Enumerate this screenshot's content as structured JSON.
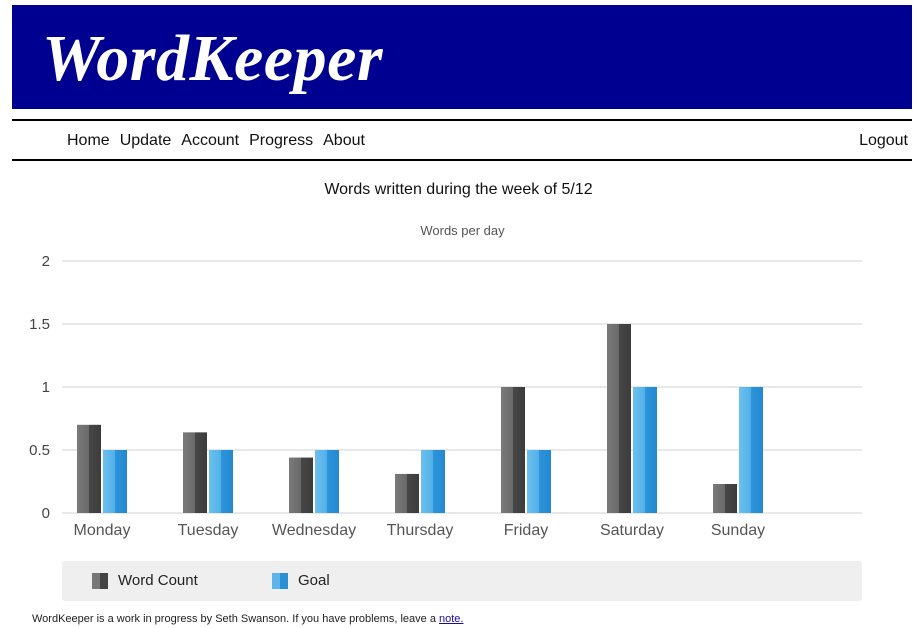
{
  "app": {
    "logo": "WordKeeper"
  },
  "nav": {
    "items": [
      {
        "label": "Home"
      },
      {
        "label": "Update"
      },
      {
        "label": "Account"
      },
      {
        "label": "Progress"
      },
      {
        "label": "About"
      }
    ],
    "logout": "Logout"
  },
  "chart_data": {
    "type": "bar",
    "title": "Words written during the week of 5/12",
    "subtitle": "Words per day",
    "categories": [
      "Monday",
      "Tuesday",
      "Wednesday",
      "Thursday",
      "Friday",
      "Saturday",
      "Sunday"
    ],
    "series": [
      {
        "name": "Word Count",
        "values": [
          0.7,
          0.64,
          0.44,
          0.31,
          1.0,
          1.5,
          0.23
        ],
        "color": "#555555"
      },
      {
        "name": "Goal",
        "values": [
          0.5,
          0.5,
          0.5,
          0.5,
          0.5,
          1.0,
          1.0
        ],
        "color": "#3aa0e0"
      }
    ],
    "ylim": [
      0,
      2
    ],
    "yticks": [
      "0",
      "0.5",
      "1",
      "1.5",
      "2"
    ],
    "grid": true,
    "legend": "bottom"
  },
  "footer": {
    "text": "WordKeeper is a work in progress by Seth Swanson. If you have problems, leave a ",
    "link": "note."
  }
}
